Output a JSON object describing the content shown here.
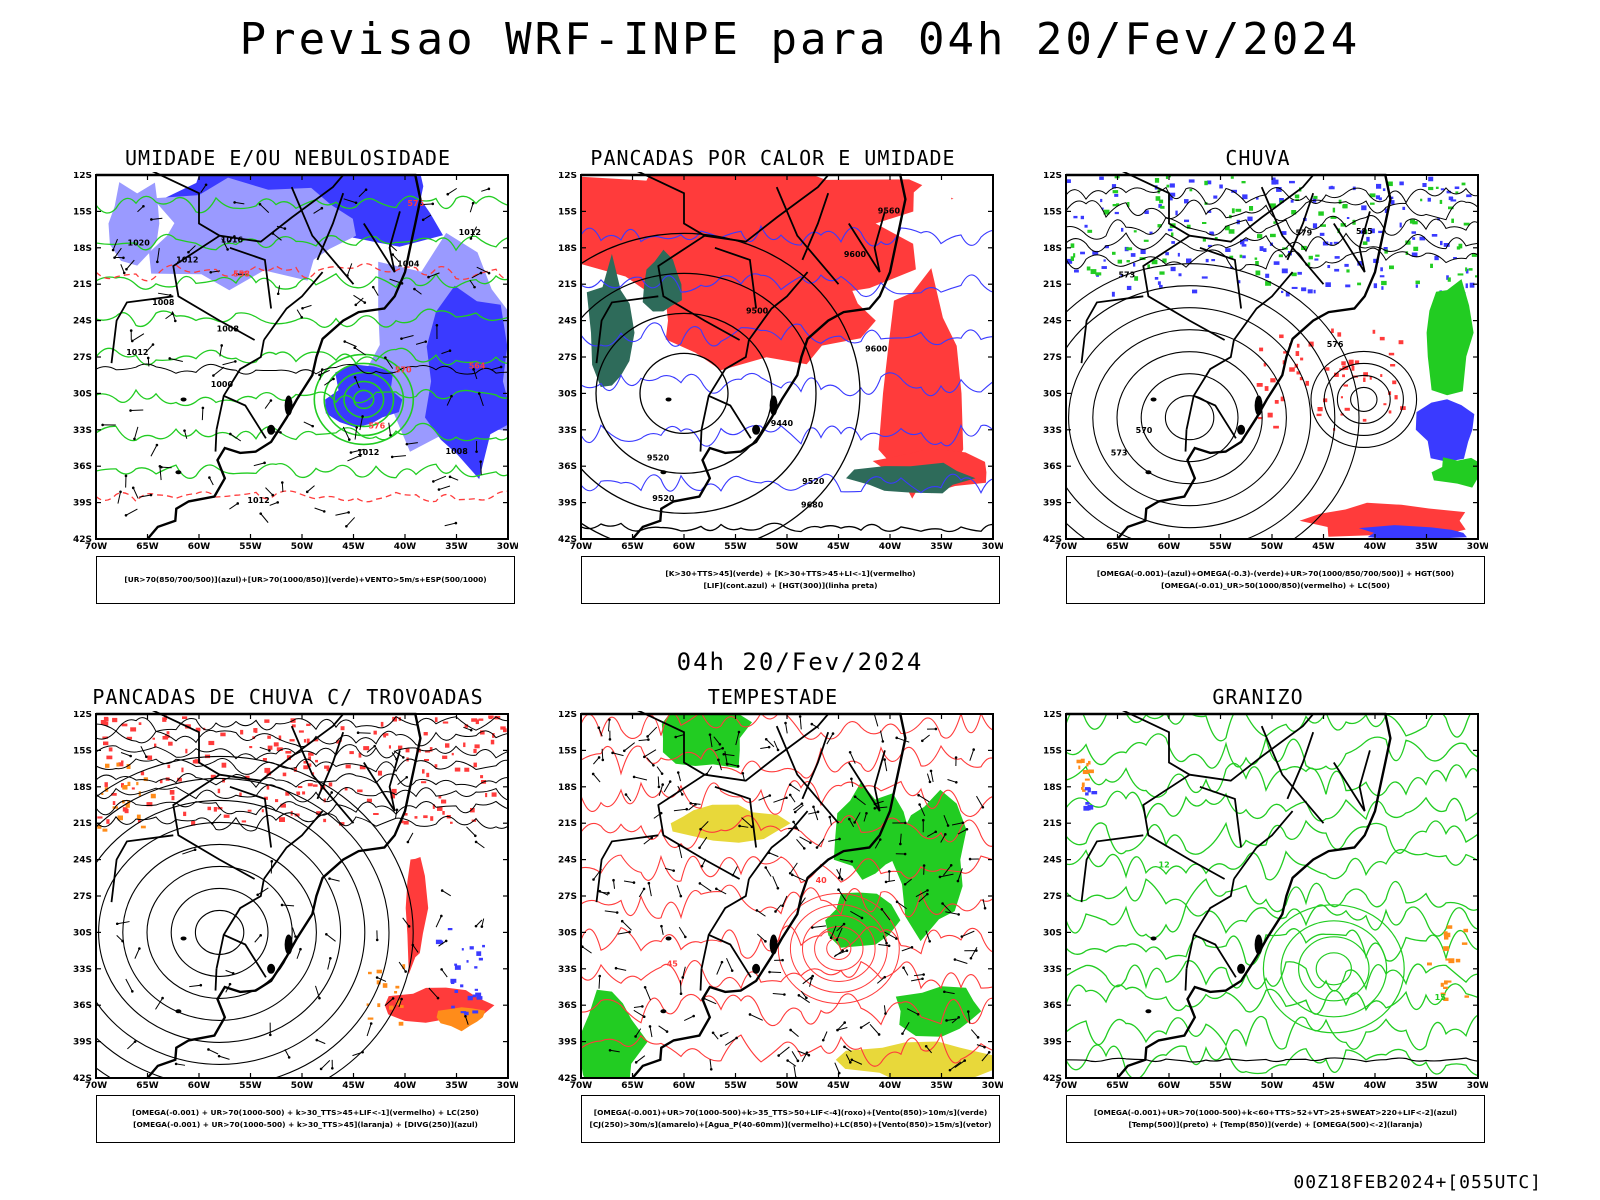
{
  "title": "Previsao WRF-INPE  para 04h 20/Fev/2024",
  "subtitle": "04h 20/Fev/2024",
  "footer": "00Z18FEB2024+[055UTC]",
  "lat_ticks": [
    "12S",
    "15S",
    "18S",
    "21S",
    "24S",
    "27S",
    "30S",
    "33S",
    "36S",
    "39S",
    "42S"
  ],
  "lon_ticks": [
    "70W",
    "65W",
    "60W",
    "55W",
    "50W",
    "45W",
    "40W",
    "35W",
    "30W"
  ],
  "panels": [
    {
      "title": "UMIDADE E/OU NEBULOSIDADE",
      "legend": [
        "[UR>70(850/700/500)](azul)+[UR>70(1000/850)](verde)+VENTO>5m/s+ESP(500/1000)"
      ],
      "contour_labels": [
        "1012",
        "1008",
        "1016",
        "1020",
        "1012",
        "1008",
        "1004",
        "1000",
        "1008",
        "1012",
        "1012",
        "1012",
        "576",
        "570",
        "564",
        "558",
        "576"
      ]
    },
    {
      "title": "PANCADAS POR CALOR E UMIDADE",
      "legend": [
        "[K>30+TTS>45](verde) + [K>30+TTS>45+LI<-1](vermelho)",
        "[LIF](cont.azul) + [HGT(300)](linha preta)"
      ],
      "contour_labels": [
        "9680",
        "9600",
        "9560",
        "9520",
        "9500",
        "9520",
        "9600",
        "9440",
        "9520"
      ]
    },
    {
      "title": "CHUVA",
      "legend": [
        "[OMEGA(-0.001)-(azul)+OMEGA(-0.3)-(verde)+UR>70(1000/850/700/500)] + HGT(500)",
        "[OMEGA(-0.01)_UR>50(1000/850)(vermelho) + LC(500)"
      ],
      "contour_labels": [
        "576",
        "579",
        "585",
        "573",
        "570",
        "573"
      ]
    },
    {
      "title": "PANCADAS DE CHUVA C/ TROVOADAS",
      "legend": [
        "[OMEGA(-0.001) + UR>70(1000-500) + k>30_TTS>45+LIF<-1](vermelho) + LC(250)",
        "[OMEGA(-0.001) + UR>70(1000-500) + k>30_TTS>45](laranja) + [DIVG(250)](azul)"
      ],
      "contour_labels": []
    },
    {
      "title": "TEMPESTADE",
      "legend": [
        "[OMEGA(-0.001)+UR>70(1000-500)+k>35_TTS>50+LIF<-4](roxo)+[Vento(850)>10m/s](verde)",
        "[CJ(250)>30m/s](amarelo)+[Agua_P(40-60mm)](vermelho)+LC(850)+[Vento(850)>15m/s](vetor)"
      ],
      "contour_labels": [
        "40",
        "45"
      ]
    },
    {
      "title": "GRANIZO",
      "legend": [
        "[OMEGA(-0.001)+UR>70(1000-500)+k<60+TTS>52+VT>25+SWEAT>220+LIF<-2](azul)",
        "[Temp(500)](preto) + [Temp(850)](verde) + [OMEGA(500)<-2](laranja)"
      ],
      "contour_labels": [
        "12",
        "15"
      ]
    }
  ],
  "colors": {
    "red": "#ff3b3b",
    "blue": "#3a3aff",
    "lightblue": "#9a9aff",
    "green": "#22cc22",
    "darkgreen": "#2e6b5a",
    "yellow": "#e8d83a",
    "orange": "#ff8c1a",
    "black": "#000000"
  }
}
